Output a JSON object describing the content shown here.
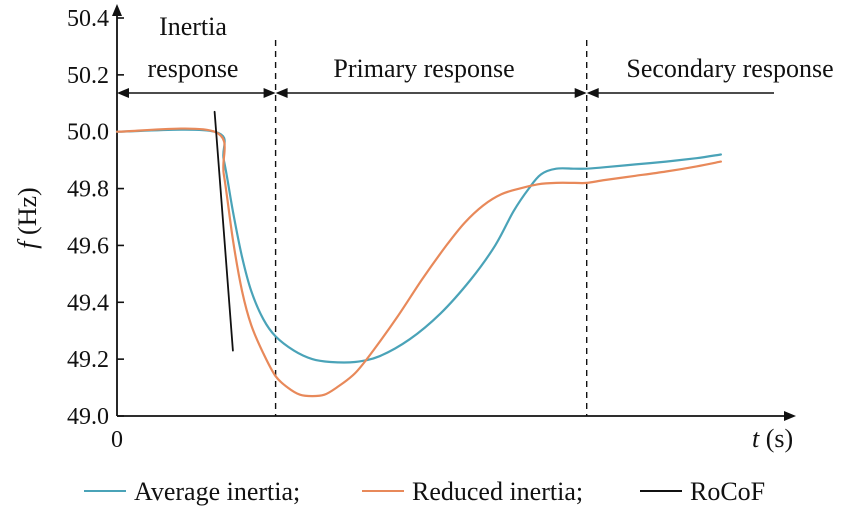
{
  "chart_data": {
    "type": "line",
    "xlabel_var": "t",
    "xlabel_unit": "(s)",
    "ylabel_var": "f",
    "ylabel_unit": "(Hz)",
    "x_origin_label": "0",
    "ylim": [
      49.0,
      50.4
    ],
    "y_ticks": [
      "49.0",
      "49.2",
      "49.4",
      "49.6",
      "49.8",
      "50.0",
      "50.2",
      "50.4"
    ],
    "y_tick_values": [
      49.0,
      49.2,
      49.4,
      49.6,
      49.8,
      50.0,
      50.2,
      50.4
    ],
    "regions": [
      {
        "label_lines": [
          "Inertia",
          "response"
        ]
      },
      {
        "label_lines": [
          "Primary response"
        ]
      },
      {
        "label_lines": [
          "Secondary response"
        ]
      }
    ],
    "region_boundaries_t": [
      2.6,
      7.7
    ],
    "t_max": 11.0,
    "series": [
      {
        "name": "Average inertia;",
        "color": "#4aa3b8",
        "t": [
          0,
          1.6,
          1.75,
          1.9,
          2.05,
          2.2,
          2.4,
          2.6,
          2.9,
          3.2,
          3.5,
          3.9,
          4.3,
          4.8,
          5.3,
          5.8,
          6.2,
          6.5,
          6.75,
          6.95,
          7.2,
          7.5,
          7.7,
          8.0,
          8.5,
          9.0,
          9.5,
          9.9
        ],
        "f": [
          50.0,
          50.0,
          49.9,
          49.72,
          49.56,
          49.44,
          49.34,
          49.28,
          49.23,
          49.2,
          49.19,
          49.19,
          49.21,
          49.27,
          49.36,
          49.48,
          49.6,
          49.72,
          49.8,
          49.85,
          49.87,
          49.87,
          49.87,
          49.875,
          49.885,
          49.895,
          49.907,
          49.92
        ]
      },
      {
        "name": "Reduced inertia;",
        "color": "#e8895a",
        "t": [
          0,
          1.6,
          1.75,
          1.9,
          2.05,
          2.2,
          2.4,
          2.6,
          2.8,
          3.0,
          3.2,
          3.4,
          3.6,
          3.9,
          4.2,
          4.6,
          5.0,
          5.4,
          5.7,
          6.0,
          6.3,
          6.6,
          6.9,
          7.2,
          7.5,
          7.7,
          8.0,
          8.5,
          9.0,
          9.5,
          9.9
        ],
        "f": [
          50.0,
          50.0,
          49.85,
          49.62,
          49.44,
          49.32,
          49.22,
          49.14,
          49.1,
          49.075,
          49.07,
          49.075,
          49.1,
          49.15,
          49.23,
          49.35,
          49.48,
          49.6,
          49.68,
          49.74,
          49.78,
          49.8,
          49.815,
          49.82,
          49.82,
          49.82,
          49.83,
          49.845,
          49.86,
          49.878,
          49.895
        ]
      },
      {
        "name": "RoCoF",
        "color": "#111111",
        "t": [
          1.6,
          1.9
        ],
        "f": [
          50.07,
          49.23
        ]
      }
    ]
  }
}
